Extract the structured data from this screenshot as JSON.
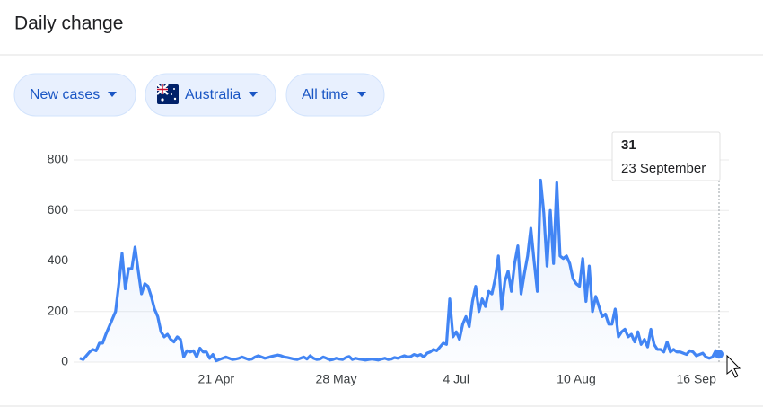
{
  "header": {
    "title": "Daily change"
  },
  "filters": [
    "New cases",
    "Australia",
    "All time"
  ],
  "tooltip": {
    "value": 31,
    "date": "23 September"
  },
  "chart_data": {
    "type": "line",
    "categories": [
      null,
      null,
      null,
      null,
      null,
      null,
      null,
      null,
      null,
      null,
      null,
      null,
      null,
      null,
      null,
      null,
      null,
      null,
      null,
      null,
      null,
      null,
      null,
      null,
      null,
      null,
      null,
      null,
      null,
      null,
      null,
      null,
      null,
      null,
      null,
      null,
      null,
      null,
      null,
      null,
      null,
      null,
      "21 Apr",
      null,
      null,
      null,
      null,
      null,
      null,
      null,
      null,
      null,
      null,
      null,
      null,
      null,
      null,
      null,
      null,
      null,
      null,
      null,
      null,
      null,
      null,
      null,
      null,
      null,
      null,
      null,
      null,
      null,
      null,
      null,
      null,
      null,
      null,
      null,
      null,
      "28 May",
      null,
      null,
      null,
      null,
      null,
      null,
      null,
      null,
      null,
      null,
      null,
      null,
      null,
      null,
      null,
      null,
      null,
      null,
      null,
      null,
      null,
      null,
      null,
      null,
      null,
      null,
      null,
      null,
      null,
      null,
      null,
      null,
      null,
      null,
      null,
      null,
      "4 Jul",
      null,
      null,
      null,
      null,
      null,
      null,
      null,
      null,
      null,
      null,
      null,
      null,
      null,
      null,
      null,
      null,
      null,
      null,
      null,
      null,
      null,
      null,
      null,
      null,
      null,
      null,
      null,
      null,
      null,
      null,
      null,
      null,
      null,
      null,
      null,
      null,
      "10 Aug",
      null,
      null,
      null,
      null,
      null,
      null,
      null,
      null,
      null,
      null,
      null,
      null,
      null,
      null,
      null,
      null,
      null,
      null,
      null,
      null,
      null,
      null,
      null,
      null,
      null,
      null,
      null,
      null,
      null,
      null,
      null,
      null,
      null,
      null,
      null,
      null,
      "16 Sep",
      null,
      null,
      null,
      null,
      null,
      null,
      null
    ],
    "values": [
      15,
      10,
      25,
      40,
      50,
      45,
      75,
      75,
      110,
      140,
      170,
      200,
      310,
      430,
      290,
      370,
      370,
      455,
      360,
      270,
      310,
      300,
      260,
      210,
      180,
      120,
      100,
      110,
      90,
      80,
      100,
      90,
      20,
      45,
      40,
      45,
      20,
      55,
      40,
      40,
      15,
      30,
      5,
      10,
      15,
      20,
      15,
      10,
      12,
      15,
      20,
      15,
      10,
      12,
      20,
      25,
      20,
      15,
      18,
      22,
      25,
      28,
      25,
      20,
      18,
      15,
      12,
      10,
      15,
      20,
      12,
      25,
      15,
      10,
      12,
      20,
      15,
      8,
      10,
      15,
      12,
      10,
      18,
      22,
      10,
      15,
      12,
      10,
      8,
      10,
      12,
      10,
      8,
      12,
      15,
      10,
      12,
      18,
      15,
      20,
      25,
      20,
      22,
      30,
      25,
      30,
      20,
      35,
      40,
      50,
      45,
      60,
      75,
      70,
      250,
      100,
      120,
      90,
      150,
      180,
      140,
      240,
      300,
      200,
      250,
      220,
      280,
      270,
      330,
      420,
      210,
      320,
      360,
      280,
      390,
      460,
      270,
      350,
      420,
      530,
      400,
      280,
      720,
      590,
      380,
      600,
      390,
      710,
      420,
      410,
      420,
      390,
      330,
      310,
      300,
      410,
      240,
      380,
      200,
      260,
      220,
      180,
      190,
      150,
      150,
      210,
      100,
      120,
      130,
      100,
      110,
      80,
      120,
      70,
      90,
      60,
      130,
      70,
      50,
      50,
      40,
      80,
      40,
      50,
      40,
      40,
      35,
      30,
      45,
      40,
      25,
      30,
      35,
      20,
      15,
      20,
      45,
      31
    ],
    "color": "#4285f4",
    "ylim": [
      0,
      800
    ],
    "yticks": [
      0,
      200,
      400,
      600,
      800
    ],
    "grid": true
  }
}
